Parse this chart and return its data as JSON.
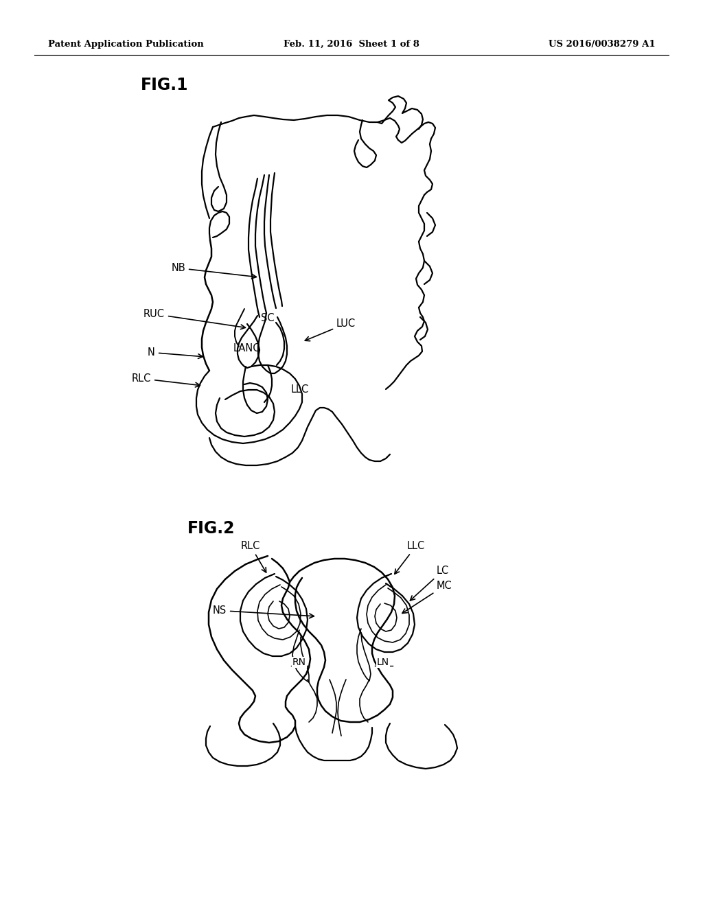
{
  "title_left": "Patent Application Publication",
  "title_center": "Feb. 11, 2016  Sheet 1 of 8",
  "title_right": "US 2016/0038279 A1",
  "fig1_label": "FIG.1",
  "fig2_label": "FIG.2",
  "background_color": "#ffffff",
  "line_color": "#000000",
  "text_color": "#000000",
  "lw_main": 1.6,
  "lw_inner": 1.2
}
